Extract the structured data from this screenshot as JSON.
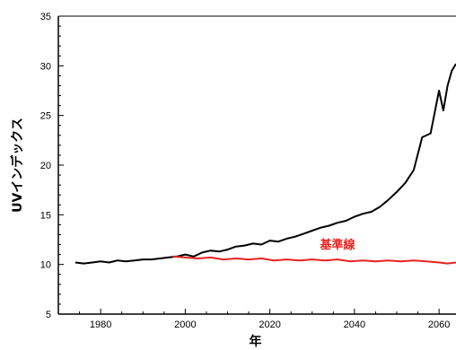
{
  "chart_data": {
    "type": "line",
    "title": "",
    "xlabel": "年",
    "ylabel": "UVインデックス",
    "xlim": [
      1970,
      2064
    ],
    "ylim": [
      5,
      35
    ],
    "xticks": [
      1980,
      2000,
      2020,
      2040,
      2060
    ],
    "yticks": [
      5,
      10,
      15,
      20,
      25,
      30,
      35
    ],
    "grid": false,
    "legend": "none",
    "annotations": [
      {
        "text": "基準線",
        "x": 2036,
        "y": 11.6,
        "color": "#e8231f"
      }
    ],
    "series": [
      {
        "color": "#000000",
        "x": [
          1974,
          1976,
          1978,
          1980,
          1982,
          1984,
          1986,
          1988,
          1990,
          1992,
          1994,
          1996,
          1998,
          2000,
          2002,
          2004,
          2006,
          2008,
          2010,
          2012,
          2014,
          2016,
          2018,
          2020,
          2022,
          2024,
          2026,
          2028,
          2030,
          2032,
          2034,
          2036,
          2038,
          2040,
          2042,
          2044,
          2046,
          2048,
          2050,
          2052,
          2054,
          2056,
          2058,
          2060,
          2061,
          2062,
          2063,
          2064
        ],
        "y": [
          10.2,
          10.1,
          10.2,
          10.3,
          10.2,
          10.4,
          10.3,
          10.4,
          10.5,
          10.5,
          10.6,
          10.7,
          10.8,
          11.0,
          10.8,
          11.2,
          11.4,
          11.3,
          11.5,
          11.8,
          11.9,
          12.1,
          12.0,
          12.4,
          12.3,
          12.6,
          12.8,
          13.1,
          13.4,
          13.7,
          13.9,
          14.2,
          14.4,
          14.8,
          15.1,
          15.3,
          15.8,
          16.5,
          17.3,
          18.2,
          19.5,
          22.8,
          23.2,
          27.5,
          25.5,
          28.0,
          29.5,
          30.2
        ]
      },
      {
        "color": "#e8231f",
        "x": [
          1997,
          2000,
          2003,
          2006,
          2009,
          2012,
          2015,
          2018,
          2021,
          2024,
          2027,
          2030,
          2033,
          2036,
          2039,
          2042,
          2045,
          2048,
          2051,
          2054,
          2057,
          2060,
          2062,
          2064
        ],
        "y": [
          10.8,
          10.7,
          10.6,
          10.7,
          10.5,
          10.6,
          10.5,
          10.6,
          10.4,
          10.5,
          10.4,
          10.5,
          10.4,
          10.5,
          10.3,
          10.4,
          10.3,
          10.4,
          10.3,
          10.4,
          10.3,
          10.2,
          10.1,
          10.2
        ]
      }
    ]
  }
}
